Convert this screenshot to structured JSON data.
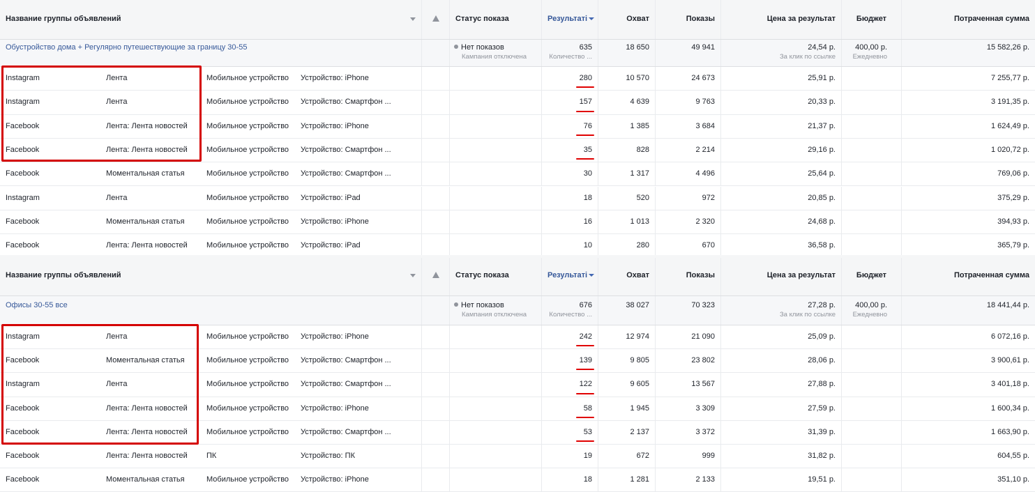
{
  "header": {
    "name_col": "Название группы объявлений",
    "status_col": "Статус показа",
    "results_col": "Результаті",
    "reach_col": "Охват",
    "impressions_col": "Показы",
    "cost_col": "Цена за результат",
    "budget_col": "Бюджет",
    "spent_col": "Потраченная сумма"
  },
  "sections": [
    {
      "campaign": {
        "name": "Обустройство дома + Регулярно путешествующие за границу 30-55",
        "status": "Нет показов",
        "status_sub": "Кампания отключена",
        "results": "635",
        "results_sub": "Количество ...",
        "reach": "18 650",
        "impressions": "49 941",
        "cost": "24,54 р.",
        "cost_sub": "За клик по ссылке",
        "budget": "400,00 р.",
        "budget_sub": "Ежедневно",
        "spent": "15 582,26 р."
      },
      "rows": [
        {
          "platform": "Instagram",
          "placement": "Лента",
          "device": "Мобильное устройство",
          "device_detail": "Устройство: iPhone",
          "results": "280",
          "reach": "10 570",
          "impressions": "24 673",
          "cost": "25,91 р.",
          "spent": "7 255,77 р."
        },
        {
          "platform": "Instagram",
          "placement": "Лента",
          "device": "Мобильное устройство",
          "device_detail": "Устройство: Смартфон ...",
          "results": "157",
          "reach": "4 639",
          "impressions": "9 763",
          "cost": "20,33 р.",
          "spent": "3 191,35 р."
        },
        {
          "platform": "Facebook",
          "placement": "Лента: Лента новостей",
          "device": "Мобильное устройство",
          "device_detail": "Устройство: iPhone",
          "results": "76",
          "reach": "1 385",
          "impressions": "3 684",
          "cost": "21,37 р.",
          "spent": "1 624,49 р."
        },
        {
          "platform": "Facebook",
          "placement": "Лента: Лента новостей",
          "device": "Мобильное устройство",
          "device_detail": "Устройство: Смартфон ...",
          "results": "35",
          "reach": "828",
          "impressions": "2 214",
          "cost": "29,16 р.",
          "spent": "1 020,72 р."
        },
        {
          "platform": "Facebook",
          "placement": "Моментальная статья",
          "device": "Мобильное устройство",
          "device_detail": "Устройство: Смартфон ...",
          "results": "30",
          "reach": "1 317",
          "impressions": "4 496",
          "cost": "25,64 р.",
          "spent": "769,06 р."
        },
        {
          "platform": "Instagram",
          "placement": "Лента",
          "device": "Мобильное устройство",
          "device_detail": "Устройство: iPad",
          "results": "18",
          "reach": "520",
          "impressions": "972",
          "cost": "20,85 р.",
          "spent": "375,29 р."
        },
        {
          "platform": "Facebook",
          "placement": "Моментальная статья",
          "device": "Мобильное устройство",
          "device_detail": "Устройство: iPhone",
          "results": "16",
          "reach": "1 013",
          "impressions": "2 320",
          "cost": "24,68 р.",
          "spent": "394,93 р."
        },
        {
          "platform": "Facebook",
          "placement": "Лента: Лента новостей",
          "device": "Мобильное устройство",
          "device_detail": "Устройство: iPad",
          "results": "10",
          "reach": "280",
          "impressions": "670",
          "cost": "36,58 р.",
          "spent": "365,79 р."
        }
      ]
    },
    {
      "campaign": {
        "name": "Офисы 30-55 все",
        "status": "Нет показов",
        "status_sub": "Кампания отключена",
        "results": "676",
        "results_sub": "Количество ...",
        "reach": "38 027",
        "impressions": "70 323",
        "cost": "27,28 р.",
        "cost_sub": "За клик по ссылке",
        "budget": "400,00 р.",
        "budget_sub": "Ежедневно",
        "spent": "18 441,44 р."
      },
      "rows": [
        {
          "platform": "Instagram",
          "placement": "Лента",
          "device": "Мобильное устройство",
          "device_detail": "Устройство: iPhone",
          "results": "242",
          "reach": "12 974",
          "impressions": "21 090",
          "cost": "25,09 р.",
          "spent": "6 072,16 р."
        },
        {
          "platform": "Facebook",
          "placement": "Моментальная статья",
          "device": "Мобильное устройство",
          "device_detail": "Устройство: Смартфон ...",
          "results": "139",
          "reach": "9 805",
          "impressions": "23 802",
          "cost": "28,06 р.",
          "spent": "3 900,61 р."
        },
        {
          "platform": "Instagram",
          "placement": "Лента",
          "device": "Мобильное устройство",
          "device_detail": "Устройство: Смартфон ...",
          "results": "122",
          "reach": "9 605",
          "impressions": "13 567",
          "cost": "27,88 р.",
          "spent": "3 401,18 р."
        },
        {
          "platform": "Facebook",
          "placement": "Лента: Лента новостей",
          "device": "Мобильное устройство",
          "device_detail": "Устройство: iPhone",
          "results": "58",
          "reach": "1 945",
          "impressions": "3 309",
          "cost": "27,59 р.",
          "spent": "1 600,34 р."
        },
        {
          "platform": "Facebook",
          "placement": "Лента: Лента новостей",
          "device": "Мобильное устройство",
          "device_detail": "Устройство: Смартфон ...",
          "results": "53",
          "reach": "2 137",
          "impressions": "3 372",
          "cost": "31,39 р.",
          "spent": "1 663,90 р."
        },
        {
          "platform": "Facebook",
          "placement": "Лента: Лента новостей",
          "device": "ПК",
          "device_detail": "Устройство: ПК",
          "results": "19",
          "reach": "672",
          "impressions": "999",
          "cost": "31,82 р.",
          "spent": "604,55 р."
        },
        {
          "platform": "Facebook",
          "placement": "Моментальная статья",
          "device": "Мобильное устройство",
          "device_detail": "Устройство: iPhone",
          "results": "18",
          "reach": "1 281",
          "impressions": "2 133",
          "cost": "19,51 р.",
          "spent": "351,10 р."
        }
      ]
    }
  ]
}
